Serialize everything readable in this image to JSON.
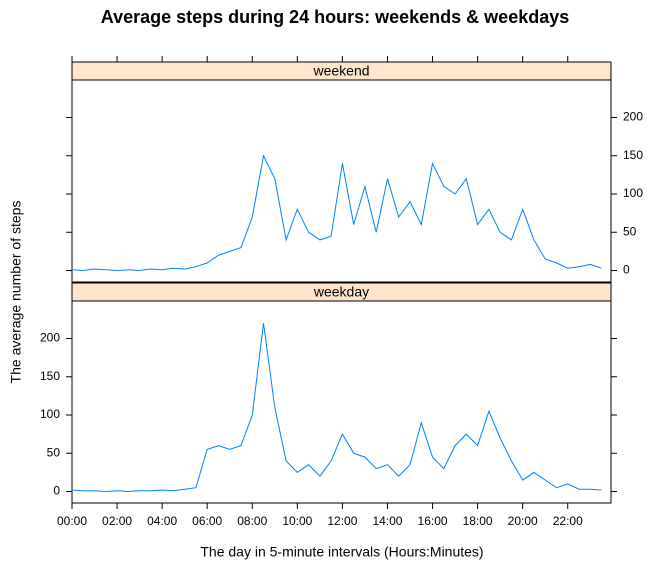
{
  "chart_data": {
    "type": "line",
    "title": "Average steps during 24 hours: weekends & weekdays",
    "x_label": "The day in 5-minute intervals (Hours:Minutes)",
    "y_label": "The average number of steps",
    "x": [
      0,
      0.5,
      1,
      1.5,
      2,
      2.5,
      3,
      3.5,
      4,
      4.5,
      5,
      5.5,
      6,
      6.5,
      7,
      7.5,
      8,
      8.5,
      9,
      9.5,
      10,
      10.5,
      11,
      11.5,
      12,
      12.5,
      13,
      13.5,
      14,
      14.5,
      15,
      15.5,
      16,
      16.5,
      17,
      17.5,
      18,
      18.5,
      19,
      19.5,
      20,
      20.5,
      21,
      21.5,
      22,
      22.5,
      23,
      23.5
    ],
    "xlim": [
      0,
      23.92
    ],
    "xticks": [
      {
        "value": 0,
        "label": "00:00"
      },
      {
        "value": 2,
        "label": "02:00"
      },
      {
        "value": 4,
        "label": "04:00"
      },
      {
        "value": 6,
        "label": "06:00"
      },
      {
        "value": 8,
        "label": "08:00"
      },
      {
        "value": 10,
        "label": "10:00"
      },
      {
        "value": 12,
        "label": "12:00"
      },
      {
        "value": 14,
        "label": "14:00"
      },
      {
        "value": 16,
        "label": "16:00"
      },
      {
        "value": 18,
        "label": "18:00"
      },
      {
        "value": 20,
        "label": "20:00"
      },
      {
        "value": 22,
        "label": "22:00"
      }
    ],
    "ylim": [
      -15,
      249
    ],
    "yticks": [
      0,
      50,
      100,
      150,
      200
    ],
    "strip_color": "#ffe5cc",
    "series": [
      {
        "name": "weekend",
        "color": "#0080ff",
        "values": [
          1,
          0,
          2,
          1,
          0,
          1,
          0,
          2,
          1,
          3,
          2,
          5,
          10,
          20,
          25,
          30,
          70,
          150,
          120,
          40,
          80,
          50,
          40,
          45,
          140,
          60,
          110,
          50,
          120,
          70,
          90,
          60,
          140,
          110,
          100,
          120,
          60,
          80,
          50,
          40,
          80,
          40,
          15,
          10,
          3,
          5,
          8,
          3
        ]
      },
      {
        "name": "weekday",
        "color": "#0080ff",
        "values": [
          2,
          1,
          1,
          0,
          1,
          0,
          1,
          1,
          2,
          1,
          3,
          5,
          55,
          60,
          55,
          60,
          100,
          220,
          110,
          40,
          25,
          35,
          20,
          40,
          75,
          50,
          45,
          30,
          35,
          20,
          35,
          90,
          45,
          30,
          60,
          75,
          60,
          105,
          70,
          40,
          15,
          25,
          15,
          5,
          10,
          3,
          3,
          2
        ]
      }
    ]
  }
}
